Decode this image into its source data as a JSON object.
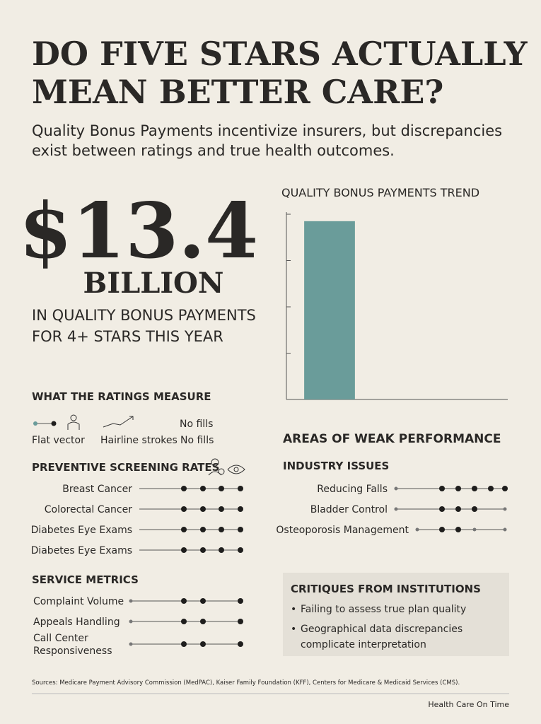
{
  "header": {
    "title_lines": [
      "DO FIVE STARS ACTUALLY",
      "MEAN BETTER CARE?"
    ],
    "subtitle_lines": [
      "Quality Bonus Payments incentivize insurers, but discrepancies",
      "exist between ratings and true health outcomes."
    ]
  },
  "stat": {
    "amount": "$13.4",
    "unit": "BILLION",
    "caption_lines": [
      "IN QUALITY BONUS PAYMENTS",
      "FOR 4+ STARS THIS YEAR"
    ]
  },
  "chart_data": {
    "type": "bar",
    "title": "QUALITY BONUS PAYMENTS TREND",
    "categories": [
      null
    ],
    "values": [
      3.85
    ],
    "color": "#6a9c9a",
    "ylim": [
      0,
      4
    ],
    "yticks": [
      1,
      2,
      3
    ]
  },
  "measure": {
    "title": "WHAT THE RATINGS MEASURE",
    "icon_note": "No fills",
    "labels": [
      "Flat vector",
      "Hairline strokes",
      "No fills"
    ]
  },
  "preventive": {
    "title": "PREVENTIVE SCREENING RATES",
    "rows": [
      "Breast Cancer",
      "Colorectal Cancer",
      "Diabetes Eye Exams",
      "Diabetes Eye Exams"
    ]
  },
  "service": {
    "title": "SERVICE METRICS",
    "rows": [
      "Complaint Volume",
      "Appeals Handling",
      "Call Center",
      "Responsiveness"
    ]
  },
  "weak": {
    "title": "AREAS OF WEAK PERFORMANCE",
    "subtitle": "INDUSTRY ISSUES",
    "rows": [
      "Reducing Falls",
      "Bladder Control",
      "Osteoporosis Management"
    ]
  },
  "critiques": {
    "title": "CRITIQUES FROM INSTITUTIONS",
    "bullets": [
      "Failing to assess true plan quality",
      "Geographical data discrepancies",
      "complicate interpretation"
    ]
  },
  "footer": {
    "sources": "Sources: Medicare Payment Advisory Commission (MedPAC), Kaiser Family Foundation (KFF), Centers for Medicare & Medicaid Services (CMS).",
    "brand": "Health Care On Time"
  }
}
